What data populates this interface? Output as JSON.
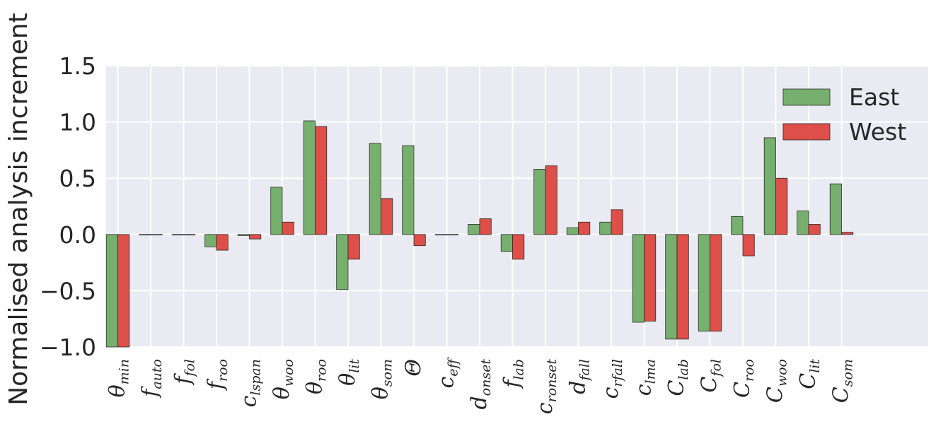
{
  "chart_data": {
    "type": "bar",
    "ylabel": "Normalised analysis increment",
    "xlabel": "",
    "title": "",
    "ylim": [
      -1.0,
      1.5
    ],
    "yticks": [
      -1.0,
      -0.5,
      0.0,
      0.5,
      1.0,
      1.5
    ],
    "ytick_labels": [
      "−1.0",
      "−0.5",
      "0.0",
      "0.5",
      "1.0",
      "1.5"
    ],
    "grid": true,
    "legend_position": "top-right",
    "categories": [
      {
        "base": "θ",
        "sub": "min"
      },
      {
        "base": "f",
        "sub": "auto"
      },
      {
        "base": "f",
        "sub": "fol"
      },
      {
        "base": "f",
        "sub": "roo"
      },
      {
        "base": "c",
        "sub": "lspan"
      },
      {
        "base": "θ",
        "sub": "woo"
      },
      {
        "base": "θ",
        "sub": "roo"
      },
      {
        "base": "θ",
        "sub": "lit"
      },
      {
        "base": "θ",
        "sub": "som"
      },
      {
        "base": "Θ",
        "sub": ""
      },
      {
        "base": "c",
        "sub": "eff"
      },
      {
        "base": "d",
        "sub": "onset"
      },
      {
        "base": "f",
        "sub": "lab"
      },
      {
        "base": "c",
        "sub": "ronset"
      },
      {
        "base": "d",
        "sub": "fall"
      },
      {
        "base": "c",
        "sub": "rfall"
      },
      {
        "base": "c",
        "sub": "lma"
      },
      {
        "base": "C",
        "sub": "lab"
      },
      {
        "base": "C",
        "sub": "fol"
      },
      {
        "base": "C",
        "sub": "roo"
      },
      {
        "base": "C",
        "sub": "woo"
      },
      {
        "base": "C",
        "sub": "lit"
      },
      {
        "base": "C",
        "sub": "som"
      }
    ],
    "series": [
      {
        "name": "East",
        "color": "#77b06e",
        "values": [
          -1.0,
          0.0,
          0.0,
          -0.11,
          -0.01,
          0.42,
          1.01,
          -0.49,
          0.81,
          0.79,
          0.0,
          0.09,
          -0.15,
          0.58,
          0.06,
          0.11,
          -0.78,
          -0.93,
          -0.86,
          0.16,
          0.86,
          0.21,
          0.45
        ]
      },
      {
        "name": "West",
        "color": "#dd4f48",
        "values": [
          -1.0,
          0.0,
          0.0,
          -0.14,
          -0.04,
          0.11,
          0.96,
          -0.22,
          0.32,
          -0.1,
          0.0,
          0.14,
          -0.22,
          0.61,
          0.11,
          0.22,
          -0.77,
          -0.93,
          -0.86,
          -0.19,
          0.5,
          0.09,
          0.02
        ]
      }
    ]
  }
}
